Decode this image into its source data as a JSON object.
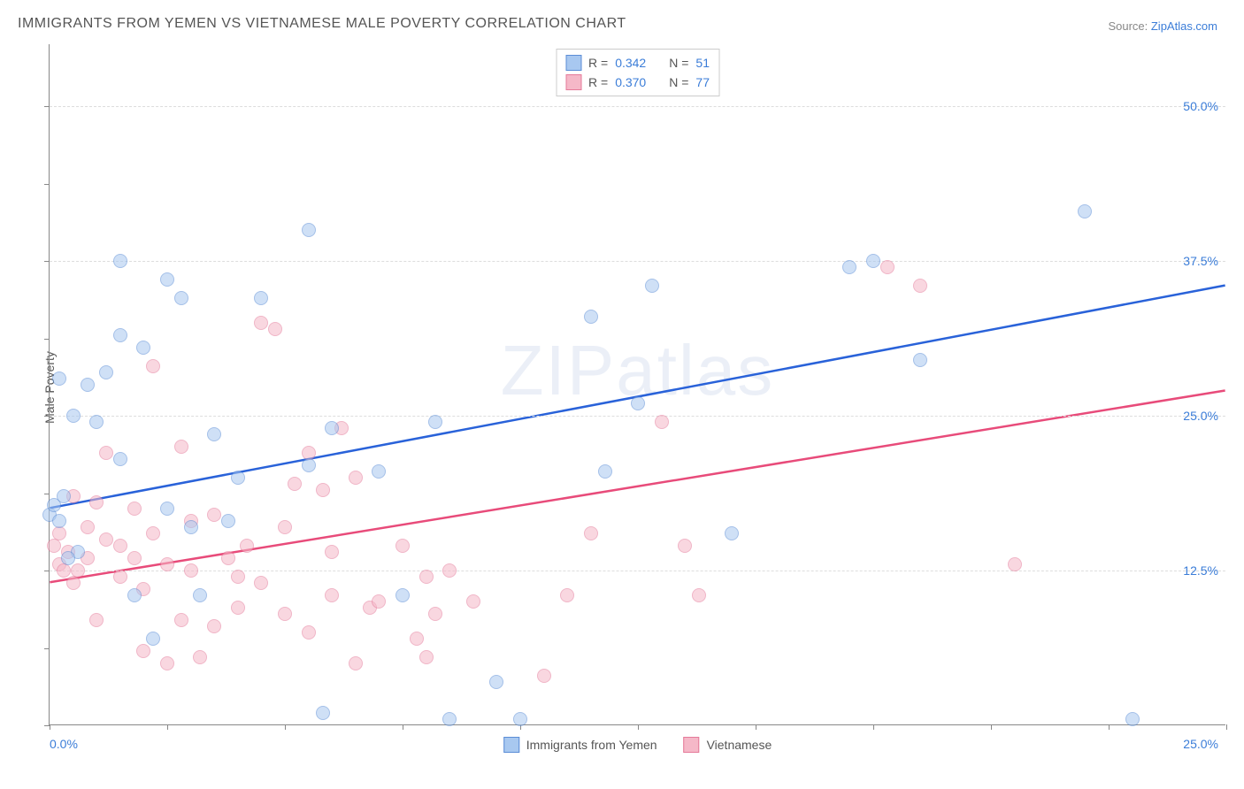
{
  "title": "IMMIGRANTS FROM YEMEN VS VIETNAMESE MALE POVERTY CORRELATION CHART",
  "source_label": "Source: ",
  "source_link": "ZipAtlas.com",
  "y_axis_label": "Male Poverty",
  "watermark_bold": "ZIP",
  "watermark_light": "atlas",
  "chart": {
    "type": "scatter",
    "xlim": [
      0,
      25
    ],
    "ylim": [
      0,
      55
    ],
    "x_ticks_labeled": {
      "0": "0.0%",
      "25": "25.0%"
    },
    "y_ticks_labeled": {
      "12.5": "12.5%",
      "25": "25.0%",
      "37.5": "37.5%",
      "50": "50.0%"
    },
    "x_minor_ticks": [
      0,
      2.5,
      5,
      7.5,
      10,
      12.5,
      15,
      17.5,
      20,
      22.5,
      25
    ],
    "y_minor_ticks": [
      0,
      6.25,
      12.5,
      18.75,
      25,
      31.25,
      37.5,
      43.75,
      50
    ],
    "grid_color": "#dddddd",
    "axis_color": "#888888",
    "background_color": "#ffffff"
  },
  "series": [
    {
      "name": "Immigrants from Yemen",
      "color_fill": "#a8c8f0",
      "color_border": "#5b8dd6",
      "line_color": "#2962d9",
      "R": "0.342",
      "N": "51",
      "trend": {
        "y_at_x0": 17.5,
        "y_at_x25": 35.5
      },
      "points": [
        [
          0.0,
          17.0
        ],
        [
          0.1,
          17.8
        ],
        [
          0.2,
          16.5
        ],
        [
          0.3,
          18.5
        ],
        [
          0.2,
          28.0
        ],
        [
          0.5,
          25.0
        ],
        [
          0.8,
          27.5
        ],
        [
          0.6,
          14.0
        ],
        [
          0.4,
          13.5
        ],
        [
          1.0,
          24.5
        ],
        [
          1.2,
          28.5
        ],
        [
          1.5,
          21.5
        ],
        [
          1.5,
          37.5
        ],
        [
          1.5,
          31.5
        ],
        [
          1.8,
          10.5
        ],
        [
          2.0,
          30.5
        ],
        [
          2.2,
          7.0
        ],
        [
          2.5,
          36.0
        ],
        [
          2.8,
          34.5
        ],
        [
          2.5,
          17.5
        ],
        [
          3.0,
          16.0
        ],
        [
          3.2,
          10.5
        ],
        [
          3.5,
          23.5
        ],
        [
          3.8,
          16.5
        ],
        [
          4.0,
          20.0
        ],
        [
          4.5,
          34.5
        ],
        [
          5.5,
          40.0
        ],
        [
          5.5,
          21.0
        ],
        [
          5.8,
          1.0
        ],
        [
          6.0,
          24.0
        ],
        [
          7.0,
          20.5
        ],
        [
          7.5,
          10.5
        ],
        [
          8.2,
          24.5
        ],
        [
          8.5,
          0.5
        ],
        [
          9.5,
          3.5
        ],
        [
          10.0,
          0.5
        ],
        [
          11.5,
          33.0
        ],
        [
          11.8,
          20.5
        ],
        [
          12.5,
          26.0
        ],
        [
          12.8,
          35.5
        ],
        [
          14.5,
          15.5
        ],
        [
          17.0,
          37.0
        ],
        [
          17.5,
          37.5
        ],
        [
          18.5,
          29.5
        ],
        [
          22.0,
          41.5
        ],
        [
          23.0,
          0.5
        ]
      ]
    },
    {
      "name": "Vietnamese",
      "color_fill": "#f5b8c8",
      "color_border": "#e57a9a",
      "line_color": "#e84b7a",
      "R": "0.370",
      "N": "77",
      "trend": {
        "y_at_x0": 11.5,
        "y_at_x25": 27.0
      },
      "points": [
        [
          0.1,
          14.5
        ],
        [
          0.2,
          13.0
        ],
        [
          0.2,
          15.5
        ],
        [
          0.3,
          12.5
        ],
        [
          0.4,
          14.0
        ],
        [
          0.5,
          11.5
        ],
        [
          0.5,
          18.5
        ],
        [
          0.6,
          12.5
        ],
        [
          0.8,
          13.5
        ],
        [
          0.8,
          16.0
        ],
        [
          1.0,
          8.5
        ],
        [
          1.0,
          18.0
        ],
        [
          1.2,
          15.0
        ],
        [
          1.2,
          22.0
        ],
        [
          1.5,
          14.5
        ],
        [
          1.5,
          12.0
        ],
        [
          1.8,
          13.5
        ],
        [
          1.8,
          17.5
        ],
        [
          2.0,
          6.0
        ],
        [
          2.0,
          11.0
        ],
        [
          2.2,
          29.0
        ],
        [
          2.2,
          15.5
        ],
        [
          2.5,
          5.0
        ],
        [
          2.5,
          13.0
        ],
        [
          2.8,
          22.5
        ],
        [
          2.8,
          8.5
        ],
        [
          3.0,
          12.5
        ],
        [
          3.0,
          16.5
        ],
        [
          3.2,
          5.5
        ],
        [
          3.5,
          8.0
        ],
        [
          3.5,
          17.0
        ],
        [
          3.8,
          13.5
        ],
        [
          4.0,
          12.0
        ],
        [
          4.0,
          9.5
        ],
        [
          4.2,
          14.5
        ],
        [
          4.5,
          11.5
        ],
        [
          4.5,
          32.5
        ],
        [
          4.8,
          32.0
        ],
        [
          5.0,
          9.0
        ],
        [
          5.0,
          16.0
        ],
        [
          5.2,
          19.5
        ],
        [
          5.5,
          7.5
        ],
        [
          5.5,
          22.0
        ],
        [
          5.8,
          19.0
        ],
        [
          6.0,
          14.0
        ],
        [
          6.0,
          10.5
        ],
        [
          6.2,
          24.0
        ],
        [
          6.5,
          5.0
        ],
        [
          6.5,
          20.0
        ],
        [
          6.8,
          9.5
        ],
        [
          7.0,
          10.0
        ],
        [
          7.5,
          14.5
        ],
        [
          7.8,
          7.0
        ],
        [
          8.0,
          5.5
        ],
        [
          8.0,
          12.0
        ],
        [
          8.2,
          9.0
        ],
        [
          8.5,
          12.5
        ],
        [
          9.0,
          10.0
        ],
        [
          10.5,
          4.0
        ],
        [
          11.0,
          10.5
        ],
        [
          11.5,
          15.5
        ],
        [
          13.0,
          24.5
        ],
        [
          13.5,
          14.5
        ],
        [
          13.8,
          10.5
        ],
        [
          17.8,
          37.0
        ],
        [
          18.5,
          35.5
        ],
        [
          20.5,
          13.0
        ]
      ]
    }
  ],
  "legend_top": {
    "r_label": "R =",
    "n_label": "N ="
  },
  "legend_bottom": [
    {
      "label": "Immigrants from Yemen",
      "fill": "#a8c8f0",
      "border": "#5b8dd6"
    },
    {
      "label": "Vietnamese",
      "fill": "#f5b8c8",
      "border": "#e57a9a"
    }
  ]
}
